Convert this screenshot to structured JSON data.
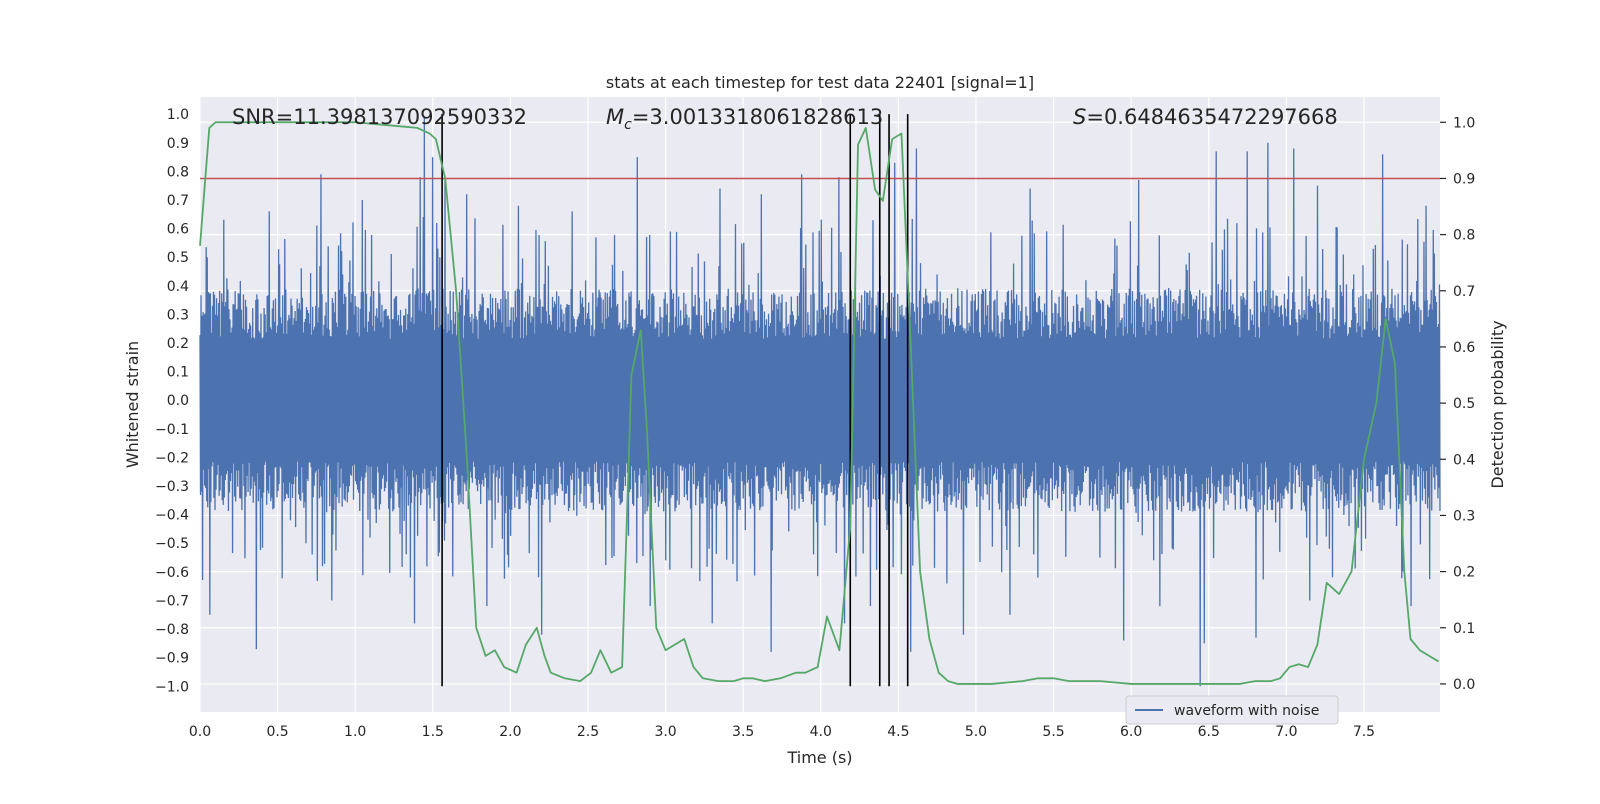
{
  "chart_data": {
    "type": "line",
    "title": "stats at each timestep for test data 22401 [signal=1]",
    "xlabel": "Time (s)",
    "ylabel_left": "Whitened strain",
    "ylabel_right": "Detection probability",
    "xlim": [
      0.0,
      7.99
    ],
    "ylim_left": [
      -1.09,
      1.06
    ],
    "ylim_right": [
      -0.05,
      1.045
    ],
    "x_ticks": [
      "0.0",
      "0.5",
      "1.0",
      "1.5",
      "2.0",
      "2.5",
      "3.0",
      "3.5",
      "4.0",
      "4.5",
      "5.0",
      "5.5",
      "6.0",
      "6.5",
      "7.0",
      "7.5"
    ],
    "y_left_ticks": [
      "1.0",
      "0.9",
      "0.8",
      "0.7",
      "0.6",
      "0.5",
      "0.4",
      "0.3",
      "0.2",
      "0.1",
      "0.0",
      "−0.1",
      "−0.2",
      "−0.3",
      "−0.4",
      "−0.5",
      "−0.6",
      "−0.7",
      "−0.8",
      "−0.9",
      "−1.0"
    ],
    "y_right_ticks": [
      "1.0",
      "0.9",
      "0.8",
      "0.7",
      "0.6",
      "0.5",
      "0.4",
      "0.3",
      "0.2",
      "0.1",
      "0.0"
    ],
    "grid": true,
    "legend": {
      "entries": [
        "waveform with noise"
      ],
      "location": "lower-right"
    },
    "annotations": {
      "snr": "SNR=11.398137092590332",
      "mc_symbol": "M",
      "mc_sub": "c",
      "mc_value": "=3.0013318061828613",
      "s_symbol": "S",
      "s_value": "=0.6484635472297668"
    },
    "threshold": {
      "axis": "right",
      "y": 0.9,
      "color": "#c44e52"
    },
    "vertical_lines": {
      "x": [
        1.56,
        4.19,
        4.38,
        4.44,
        4.56
      ],
      "y_range": [
        -1.0,
        1.0
      ],
      "color": "#000000"
    },
    "series": [
      {
        "name": "waveform with noise",
        "axis": "left",
        "color": "#4c72b0",
        "x_range": [
          0.0,
          7.99
        ],
        "amplitude_typical": 0.39,
        "peaks_positive": [
          [
            0.05,
            0.5
          ],
          [
            0.45,
            0.66
          ],
          [
            0.78,
            0.79
          ],
          [
            1.05,
            0.7
          ],
          [
            1.42,
            0.78
          ],
          [
            1.45,
            0.99
          ],
          [
            1.5,
            0.85
          ],
          [
            1.58,
            0.78
          ],
          [
            1.72,
            0.72
          ],
          [
            2.05,
            0.68
          ],
          [
            2.4,
            0.66
          ],
          [
            2.82,
            0.85
          ],
          [
            3.35,
            0.74
          ],
          [
            3.62,
            0.72
          ],
          [
            3.88,
            0.79
          ],
          [
            4.12,
            0.78
          ],
          [
            4.48,
            0.83
          ],
          [
            4.62,
            0.88
          ],
          [
            5.35,
            0.74
          ],
          [
            6.05,
            0.77
          ],
          [
            6.55,
            0.87
          ],
          [
            6.75,
            0.87
          ],
          [
            6.88,
            0.9
          ],
          [
            7.05,
            0.88
          ],
          [
            7.2,
            0.75
          ],
          [
            7.62,
            0.86
          ],
          [
            7.9,
            0.68
          ]
        ],
        "peaks_negative": [
          [
            0.06,
            -0.75
          ],
          [
            0.36,
            -0.87
          ],
          [
            0.85,
            -0.7
          ],
          [
            1.38,
            -0.78
          ],
          [
            1.85,
            -0.72
          ],
          [
            2.2,
            -0.82
          ],
          [
            2.9,
            -0.72
          ],
          [
            3.3,
            -0.78
          ],
          [
            3.68,
            -0.88
          ],
          [
            4.15,
            -0.78
          ],
          [
            4.32,
            -0.72
          ],
          [
            4.58,
            -0.88
          ],
          [
            4.92,
            -0.82
          ],
          [
            5.22,
            -0.75
          ],
          [
            5.95,
            -0.84
          ],
          [
            6.18,
            -0.72
          ],
          [
            6.44,
            -1.0
          ],
          [
            6.47,
            -0.85
          ],
          [
            6.8,
            -0.83
          ],
          [
            7.15,
            -0.7
          ],
          [
            7.8,
            -0.72
          ]
        ]
      },
      {
        "name": "detection probability",
        "axis": "right",
        "color": "#55a868",
        "x": [
          0.0,
          0.06,
          0.1,
          0.2,
          0.3,
          0.5,
          0.8,
          1.0,
          1.2,
          1.4,
          1.48,
          1.52,
          1.58,
          1.65,
          1.72,
          1.78,
          1.84,
          1.9,
          1.96,
          2.04,
          2.1,
          2.17,
          2.22,
          2.26,
          2.35,
          2.45,
          2.52,
          2.58,
          2.65,
          2.72,
          2.78,
          2.84,
          2.88,
          2.94,
          3.0,
          3.06,
          3.12,
          3.18,
          3.24,
          3.34,
          3.44,
          3.5,
          3.56,
          3.64,
          3.74,
          3.84,
          3.9,
          3.98,
          4.04,
          4.12,
          4.19,
          4.24,
          4.29,
          4.35,
          4.4,
          4.46,
          4.52,
          4.58,
          4.64,
          4.7,
          4.76,
          4.82,
          4.88,
          4.96,
          5.1,
          5.3,
          5.4,
          5.5,
          5.6,
          5.8,
          6.0,
          6.4,
          6.6,
          6.7,
          6.8,
          6.9,
          6.96,
          7.02,
          7.08,
          7.14,
          7.2,
          7.26,
          7.34,
          7.42,
          7.5,
          7.58,
          7.64,
          7.7,
          7.76,
          7.8,
          7.86,
          7.92,
          7.98
        ],
        "y": [
          0.78,
          0.99,
          1.0,
          1.0,
          1.0,
          1.0,
          1.0,
          1.0,
          0.995,
          0.99,
          0.98,
          0.97,
          0.9,
          0.7,
          0.4,
          0.1,
          0.05,
          0.06,
          0.03,
          0.02,
          0.07,
          0.1,
          0.05,
          0.02,
          0.01,
          0.005,
          0.02,
          0.06,
          0.02,
          0.03,
          0.55,
          0.63,
          0.45,
          0.1,
          0.06,
          0.07,
          0.08,
          0.03,
          0.01,
          0.005,
          0.005,
          0.01,
          0.01,
          0.005,
          0.01,
          0.02,
          0.02,
          0.03,
          0.12,
          0.06,
          0.28,
          0.96,
          0.99,
          0.88,
          0.86,
          0.97,
          0.98,
          0.6,
          0.2,
          0.08,
          0.02,
          0.005,
          0.0,
          0.0,
          0.0,
          0.005,
          0.01,
          0.01,
          0.005,
          0.005,
          0.0,
          0.0,
          0.0,
          0.0,
          0.005,
          0.005,
          0.01,
          0.03,
          0.035,
          0.03,
          0.07,
          0.18,
          0.16,
          0.2,
          0.4,
          0.5,
          0.65,
          0.57,
          0.2,
          0.08,
          0.06,
          0.05,
          0.04
        ]
      }
    ]
  }
}
